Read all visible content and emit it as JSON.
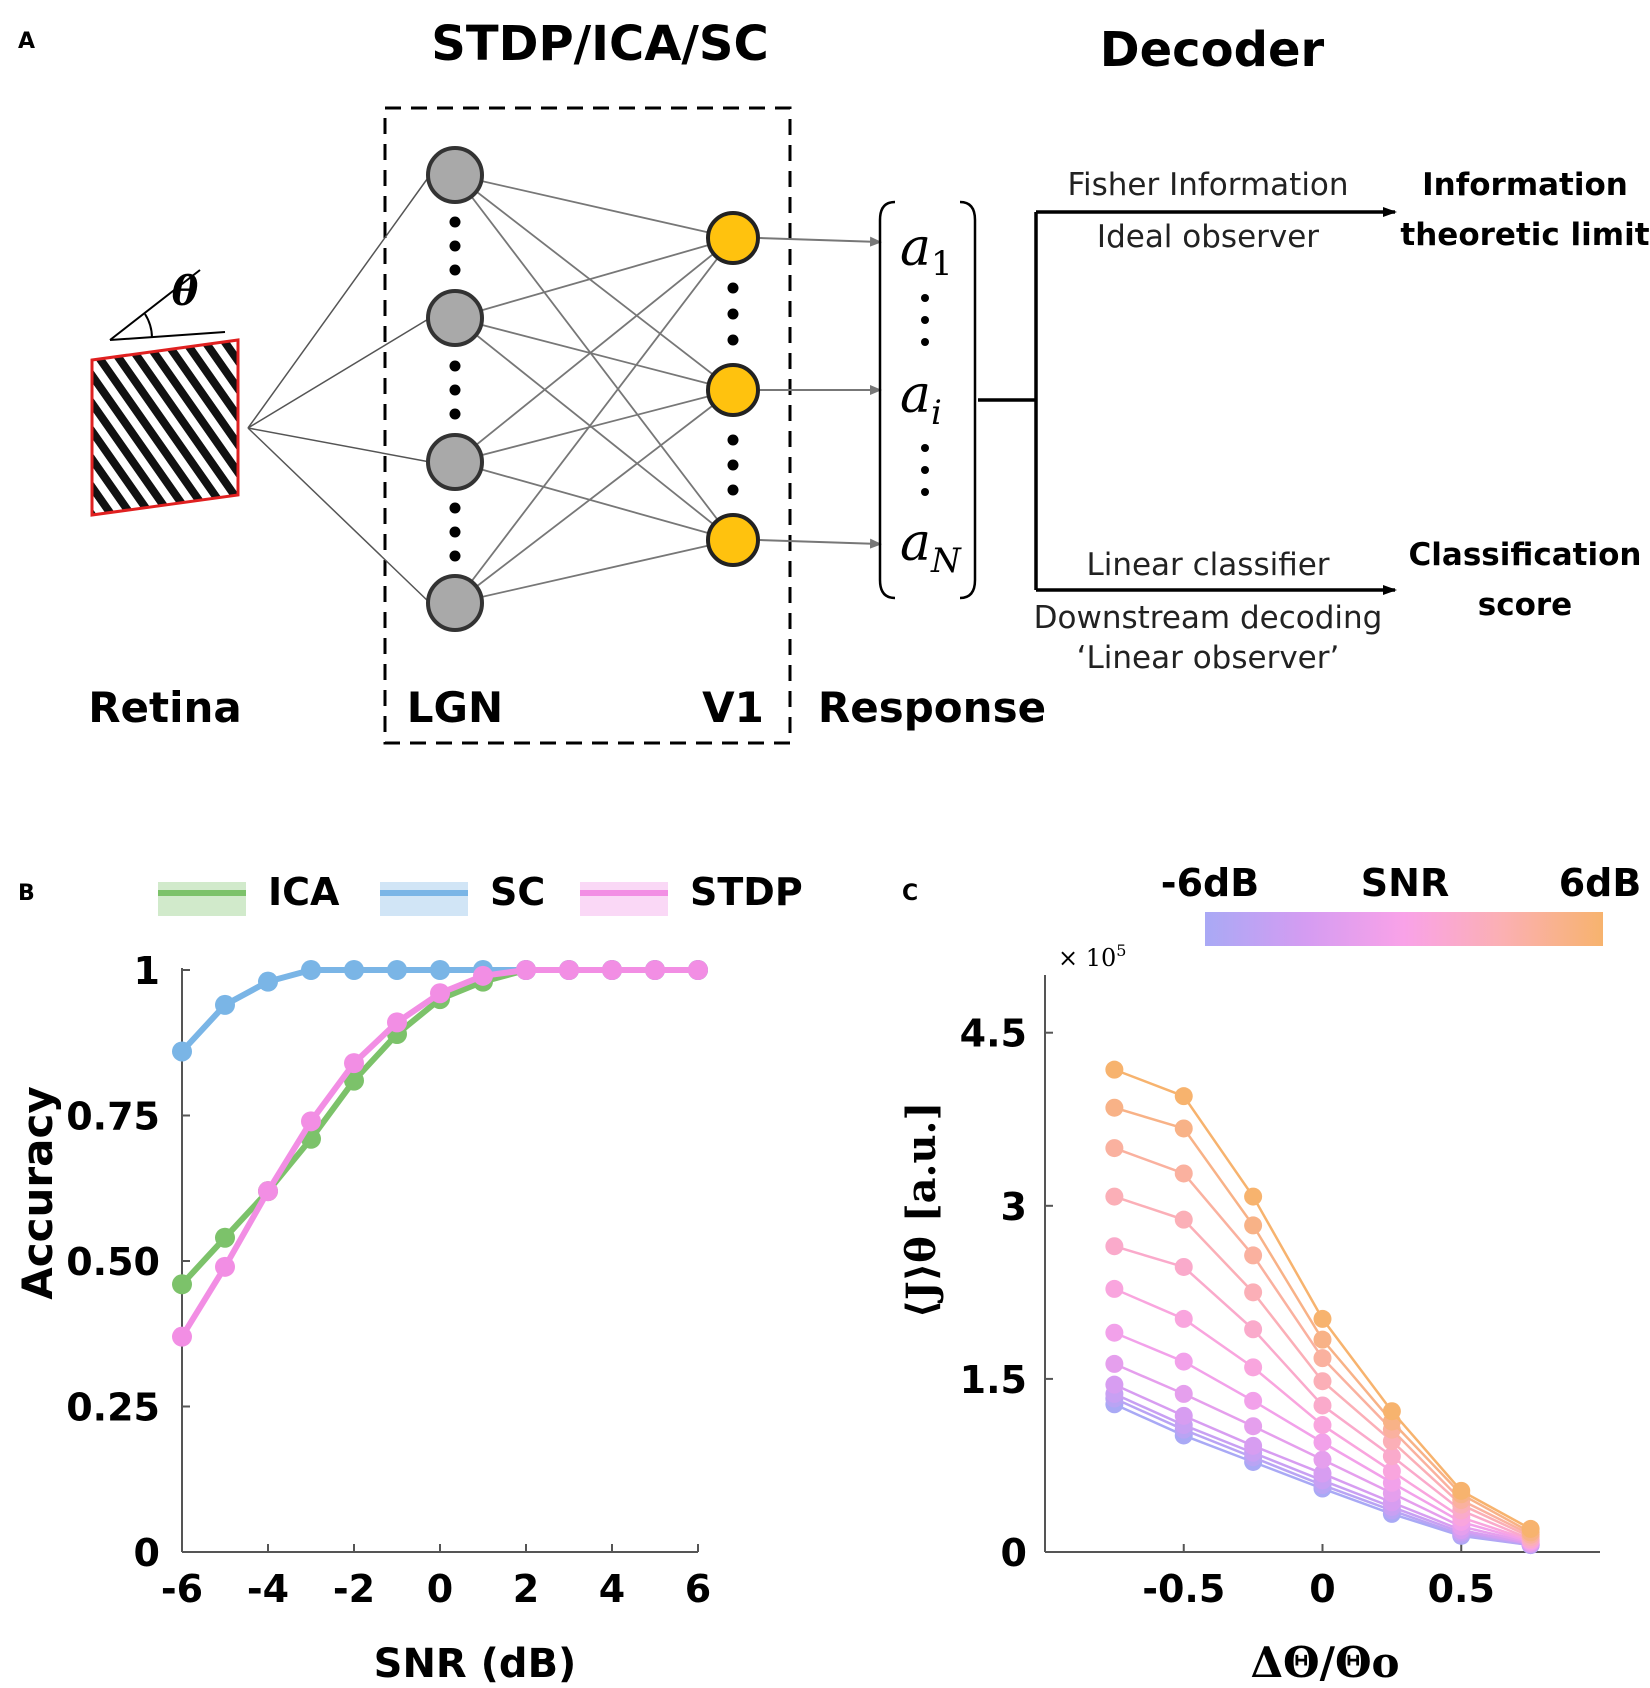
{
  "panel_a": {
    "label": "A",
    "title_model": "STDP/ICA/SC",
    "title_decoder": "Decoder",
    "theta_symbol": "θ",
    "retina_label": "Retina",
    "lgn_label": "LGN",
    "v1_label": "V1",
    "response_label": "Response",
    "response_vector": {
      "first_var": "a",
      "first_sub": "1",
      "mid_var": "a",
      "mid_sub": "i",
      "last_var": "a",
      "last_sub": "N"
    },
    "upper_branch": {
      "line1": "Fisher Information",
      "line2": "Ideal observer",
      "result_line1": "Information",
      "result_line2": "theoretic limit"
    },
    "lower_branch": {
      "line1": "Linear classifier",
      "line2": "Downstream decoding",
      "line3": "‘Linear observer’",
      "result_line1": "Classification",
      "result_line2": "score"
    },
    "colors": {
      "lgn": "#a9a9a9",
      "v1": "#ffc20e",
      "retina_border": "#e02020"
    }
  },
  "chart_data": [
    {
      "type": "line",
      "panel": "B",
      "xlabel": "SNR (dB)",
      "ylabel": "Accuracy",
      "x": [
        -6,
        -5,
        -4,
        -3,
        -2,
        -1,
        0,
        1,
        2,
        3,
        4,
        5,
        6
      ],
      "xlim": [
        -6,
        6
      ],
      "ylim": [
        0,
        1
      ],
      "xticks": [
        "-6",
        "-4",
        "-2",
        "0",
        "2",
        "4",
        "6"
      ],
      "yticks": [
        "0",
        "0.25",
        "0.50",
        "0.75",
        "1"
      ],
      "legend": "top",
      "series": [
        {
          "name": "ICA",
          "color": "#7cc26a",
          "values": [
            0.46,
            0.54,
            0.62,
            0.71,
            0.81,
            0.89,
            0.95,
            0.98,
            1.0,
            1.0,
            1.0,
            1.0,
            1.0
          ]
        },
        {
          "name": "SC",
          "color": "#7ab5e6",
          "values": [
            0.86,
            0.94,
            0.98,
            1.0,
            1.0,
            1.0,
            1.0,
            1.0,
            1.0,
            1.0,
            1.0,
            1.0,
            1.0
          ]
        },
        {
          "name": "STDP",
          "color": "#f28ee4",
          "values": [
            0.37,
            0.49,
            0.62,
            0.74,
            0.84,
            0.91,
            0.96,
            0.99,
            1.0,
            1.0,
            1.0,
            1.0,
            1.0
          ]
        }
      ]
    },
    {
      "type": "line",
      "panel": "C",
      "xlabel": "ΔΘ/Θo",
      "ylabel": "⟨J⟩θ [a.u.]",
      "multiplier": "× 10",
      "multiplier_exp": "5",
      "x": [
        -0.75,
        -0.5,
        -0.25,
        0,
        0.25,
        0.5,
        0.75
      ],
      "xlim": [
        -1.0,
        1.0
      ],
      "ylim": [
        0,
        5.0
      ],
      "xticks": [
        "-0.5",
        "0",
        "0.5"
      ],
      "yticks": [
        "0",
        "1.5",
        "3",
        "4.5"
      ],
      "colorbar": {
        "label": "SNR",
        "min_label": "-6dB",
        "max_label": "6dB",
        "colors": [
          "#a9a9f5",
          "#d49cf2",
          "#f9a2e8",
          "#fbb0b2",
          "#f7b36e"
        ]
      },
      "series": [
        {
          "name": "-6dB",
          "values": [
            1.28,
            1.01,
            0.78,
            0.55,
            0.33,
            0.14,
            0.06
          ]
        },
        {
          "name": "-5dB",
          "values": [
            1.33,
            1.06,
            0.82,
            0.58,
            0.36,
            0.15,
            0.06
          ]
        },
        {
          "name": "-4dB",
          "values": [
            1.37,
            1.1,
            0.86,
            0.62,
            0.39,
            0.17,
            0.07
          ]
        },
        {
          "name": "-3dB",
          "values": [
            1.45,
            1.18,
            0.92,
            0.68,
            0.43,
            0.19,
            0.07
          ]
        },
        {
          "name": "-2dB",
          "values": [
            1.63,
            1.37,
            1.09,
            0.8,
            0.51,
            0.22,
            0.08
          ]
        },
        {
          "name": "-1dB",
          "values": [
            1.9,
            1.65,
            1.31,
            0.95,
            0.6,
            0.26,
            0.09
          ]
        },
        {
          "name": "0dB",
          "values": [
            2.28,
            2.02,
            1.6,
            1.1,
            0.7,
            0.3,
            0.1
          ]
        },
        {
          "name": "1dB",
          "values": [
            2.65,
            2.47,
            1.93,
            1.27,
            0.83,
            0.36,
            0.11
          ]
        },
        {
          "name": "2dB",
          "values": [
            3.08,
            2.88,
            2.25,
            1.48,
            0.96,
            0.41,
            0.13
          ]
        },
        {
          "name": "3dB",
          "values": [
            3.5,
            3.28,
            2.57,
            1.68,
            1.06,
            0.45,
            0.15
          ]
        },
        {
          "name": "4dB",
          "values": [
            3.85,
            3.67,
            2.83,
            1.84,
            1.13,
            0.5,
            0.17
          ]
        },
        {
          "name": "6dB",
          "values": [
            4.18,
            3.95,
            3.08,
            2.02,
            1.22,
            0.53,
            0.2
          ]
        }
      ]
    }
  ]
}
